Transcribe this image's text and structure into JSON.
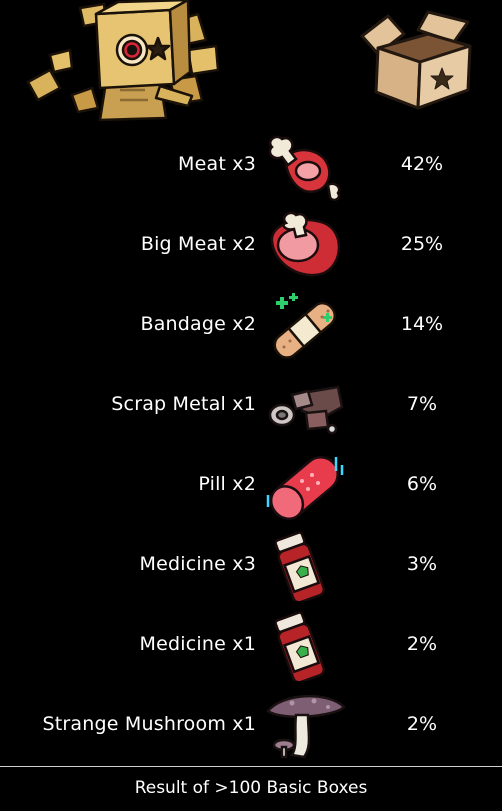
{
  "items": [
    {
      "label": "Meat x3",
      "pct": "42%",
      "icon": "meat-icon"
    },
    {
      "label": "Big Meat x2",
      "pct": "25%",
      "icon": "big-meat-icon"
    },
    {
      "label": "Bandage x2",
      "pct": "14%",
      "icon": "bandage-icon"
    },
    {
      "label": "Scrap Metal x1",
      "pct": "7%",
      "icon": "scrap-metal-icon"
    },
    {
      "label": "Pill x2",
      "pct": "6%",
      "icon": "pill-icon"
    },
    {
      "label": "Medicine x3",
      "pct": "3%",
      "icon": "medicine-icon"
    },
    {
      "label": "Medicine x1",
      "pct": "2%",
      "icon": "medicine-icon"
    },
    {
      "label": "Strange Mushroom x1",
      "pct": "2%",
      "icon": "mushroom-icon"
    }
  ],
  "footer": "Result of >100 Basic Boxes"
}
